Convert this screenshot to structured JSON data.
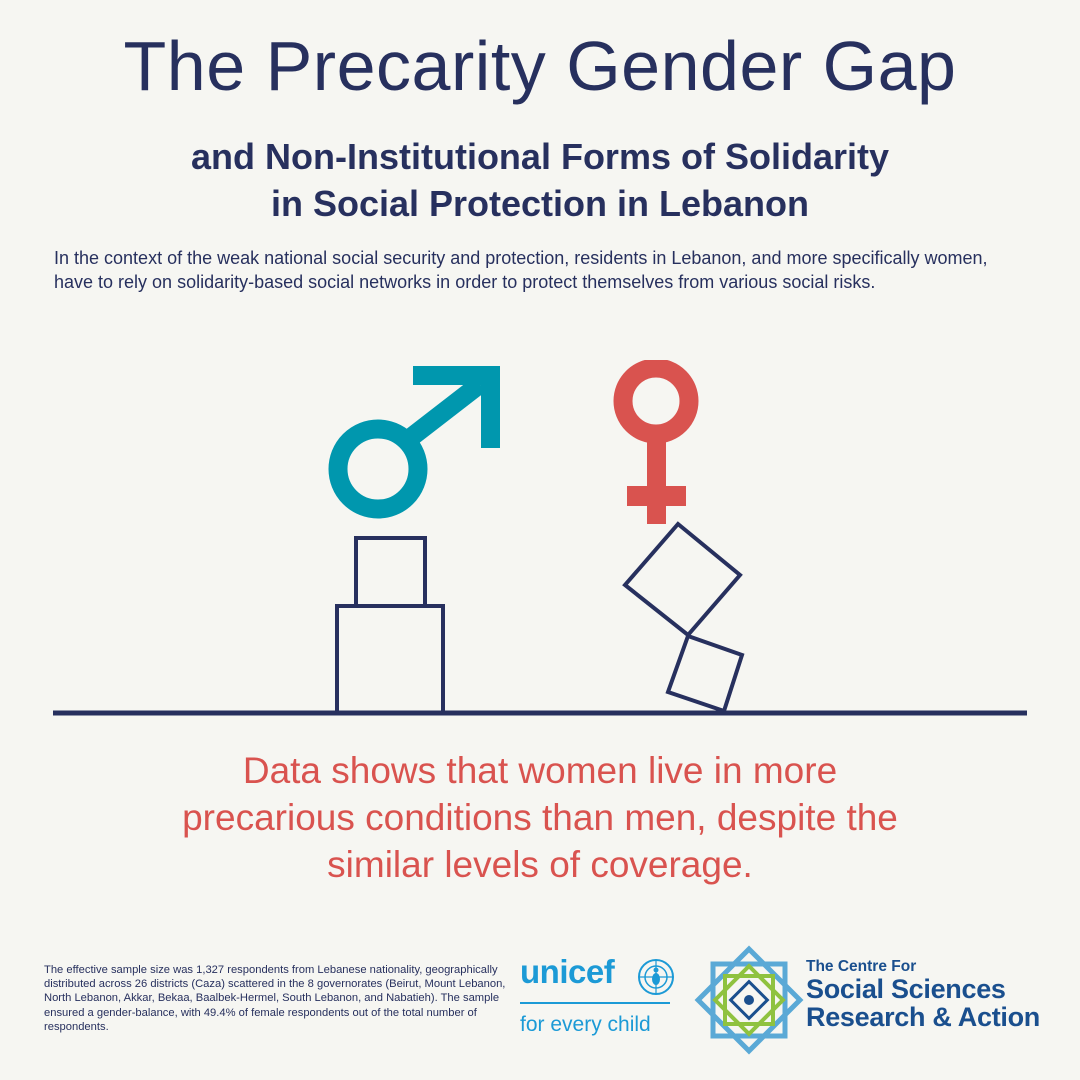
{
  "header": {
    "title": "The Precarity Gender Gap",
    "subtitle_line1": "and Non-Institutional Forms of Solidarity",
    "subtitle_line2": "in Social Protection in Lebanon"
  },
  "intro": "In the context of the weak national social security and protection, residents in Lebanon, and more specifically women, have to rely on solidarity-based social networks in order to protect themselves from various social risks.",
  "illustration": {
    "icons": [
      "male-symbol-icon",
      "female-symbol-icon"
    ],
    "colors": {
      "male": "#0097ae",
      "female": "#d9534f",
      "outline": "#27305e"
    }
  },
  "finding": {
    "line1": "Data shows that women live in more",
    "line2": "precarious conditions than men, despite the",
    "line3": "similar levels of coverage."
  },
  "footnote": "The effective sample size was 1,327 respondents from Lebanese nationality, geographically distributed across 26 districts (Caza) scattered in the 8 governorates (Beirut, Mount Lebanon, North Lebanon, Akkar, Bekaa, Baalbek-Hermel, South Lebanon, and Nabatieh). The sample ensured a gender-balance, with 49.4% of female respondents out of the total number of respondents.",
  "logos": {
    "unicef_name": "unicef",
    "unicef_tagline": "for every child",
    "centre_line1": "The Centre For",
    "centre_line2": "Social Sciences",
    "centre_line3": "Research & Action"
  }
}
